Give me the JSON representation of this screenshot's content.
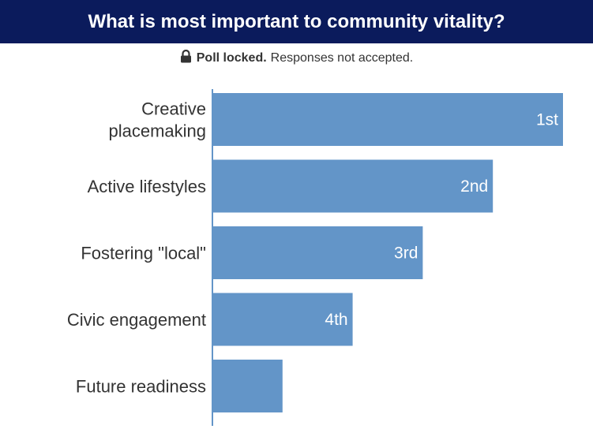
{
  "header": {
    "title": "What is most important to community vitality?"
  },
  "status": {
    "strong": "Poll locked.",
    "text": "Responses not accepted."
  },
  "colors": {
    "header_bg": "#0b1b5c",
    "bar": "#6395c8",
    "axis": "#6395c8"
  },
  "icons": {
    "lock": "lock-icon"
  },
  "chart_data": {
    "type": "bar",
    "orientation": "horizontal",
    "categories": [
      [
        "Creative",
        "placemaking"
      ],
      [
        "Active lifestyles"
      ],
      [
        "Fostering \"local\""
      ],
      [
        "Civic engagement"
      ],
      [
        "Future readiness"
      ]
    ],
    "values": [
      5,
      4,
      3,
      2,
      1
    ],
    "data_labels": [
      "1st",
      "2nd",
      "3rd",
      "4th",
      ""
    ],
    "xlim": [
      0,
      5
    ],
    "grid": false
  }
}
